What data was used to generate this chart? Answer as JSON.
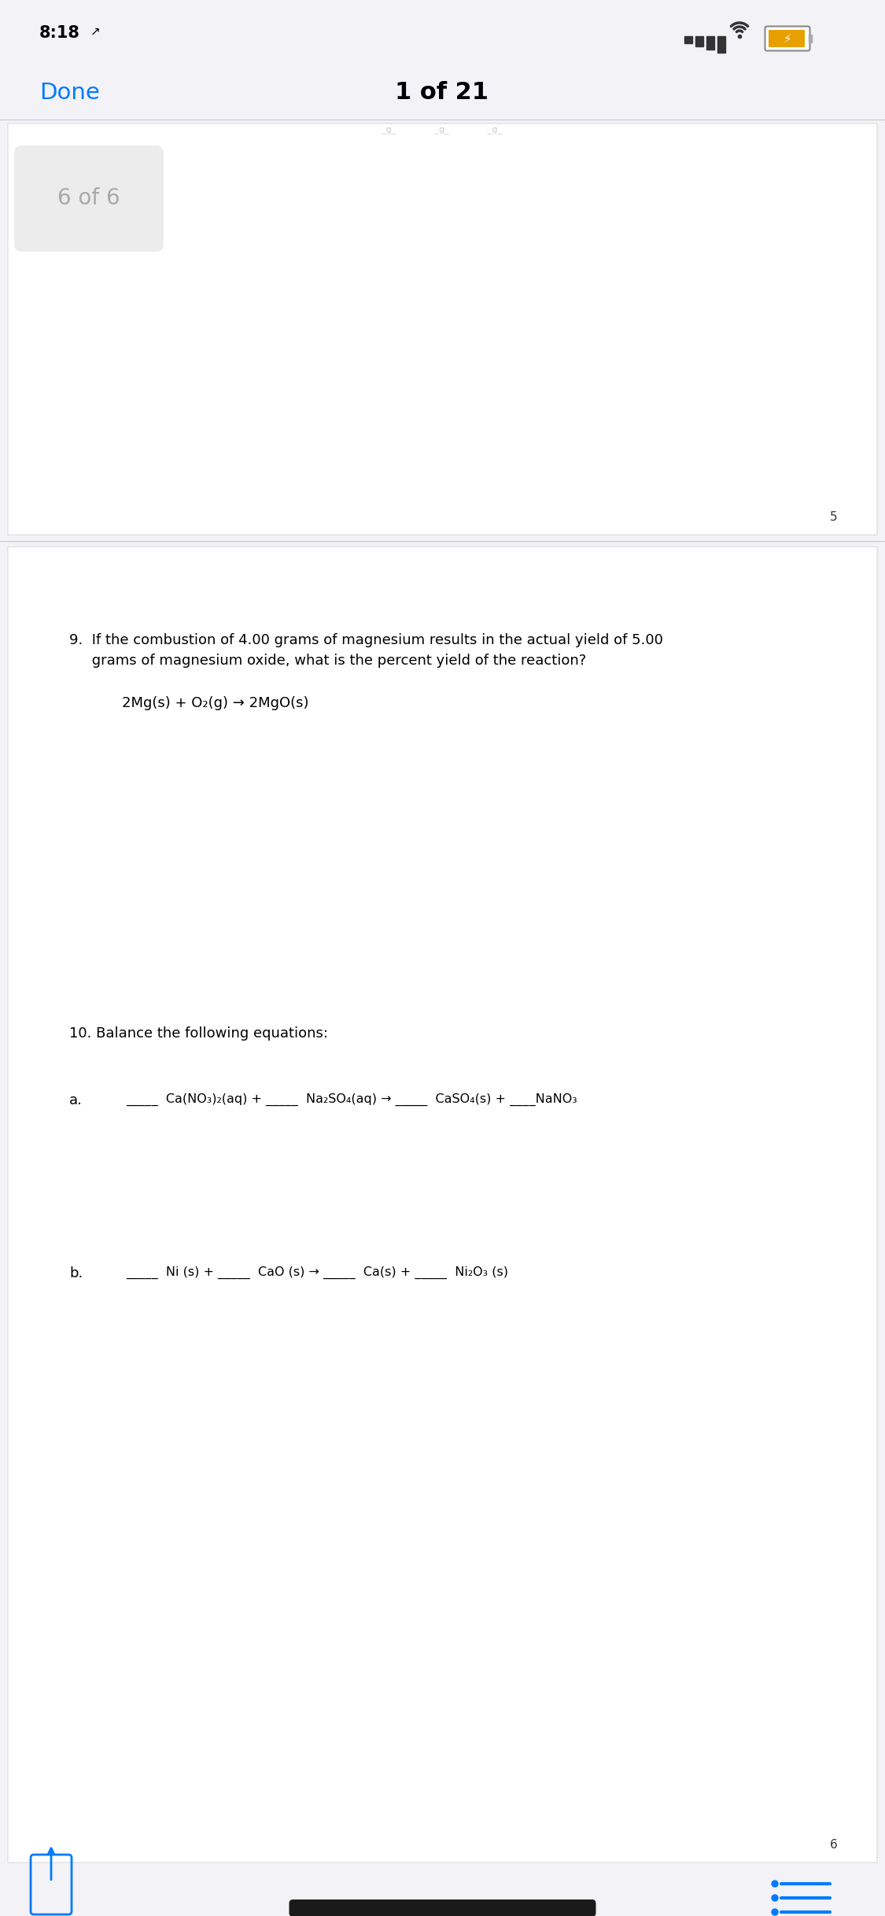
{
  "bg_color": "#f2f2f7",
  "white": "#ffffff",
  "black": "#000000",
  "gray_text": "#8e8e93",
  "blue_text": "#007aff",
  "time_text": "8:18",
  "arrow_text": "↗",
  "done_text": "Done",
  "header_text": "1 of 21",
  "page_badge_text": "6 of 6",
  "page_num_5": "5",
  "page_num_6": "6",
  "q9_line1": "9.  If the combustion of 4.00 grams of magnesium results in the actual yield of 5.00",
  "q9_line2": "     grams of magnesium oxide, what is the percent yield of the reaction?",
  "q9_equation": "2Mg(s) + O₂(g) → 2MgO(s)",
  "q10_heading": "10. Balance the following equations:",
  "q10a_label": "a.",
  "q10a_eq": "_____  Ca(NO₃)₂(aq) + _____  Na₂SO₄(aq) → _____  CaSO₄(s) + ____NaNO₃",
  "q10b_label": "b.",
  "q10b_eq": "_____  Ni (s) + _____  CaO (s) → _____  Ca(s) + _____  Ni₂O₃ (s)"
}
